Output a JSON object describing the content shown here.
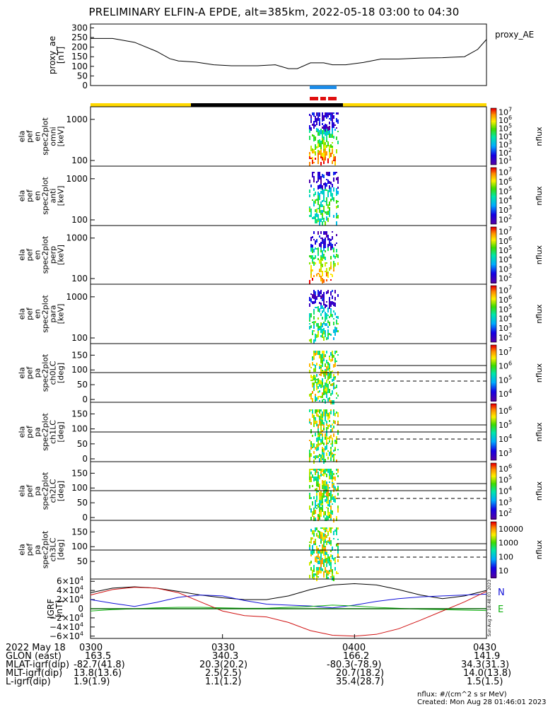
{
  "title": "PRELIMINARY ELFIN-A EPDE, alt=385km, 2022-05-18 03:00 to 04:30",
  "colors": {
    "fgm_sci_bar": "#1c8ce8",
    "epd_sci_bar": "#e01010",
    "day_color": "#ffd800",
    "night_color": "#000000",
    "trace_black": "#000000",
    "trace_blue": "#1010d8",
    "trace_green": "#10b010",
    "trace_red": "#d01010",
    "trace_dark_green": "#006400"
  },
  "chart_data": [
    {
      "type": "line",
      "name": "proxy_ae",
      "ylabel": "proxy_ae\n[nT]",
      "legend": "proxy_AE",
      "yticks": [
        "0",
        "50",
        "100",
        "150",
        "200",
        "250",
        "300"
      ],
      "ylim": [
        0,
        320
      ],
      "x_minutes": [
        0,
        5,
        10,
        15,
        18,
        20,
        24,
        28,
        32,
        38,
        42,
        45,
        47,
        50,
        53,
        55,
        58,
        62,
        66,
        70,
        75,
        80,
        85,
        88,
        90
      ],
      "values": [
        245,
        245,
        225,
        178,
        140,
        128,
        122,
        108,
        103,
        103,
        108,
        88,
        88,
        118,
        118,
        108,
        108,
        120,
        138,
        138,
        143,
        145,
        150,
        188,
        240
      ]
    },
    {
      "type": "heatmap",
      "ylabel": "ela\npef\nen\nspec2plot\nomni\n[keV]",
      "yticks": [
        "100",
        "1000"
      ],
      "colorbar": {
        "ticks": [
          "10",
          "10",
          "10",
          "10",
          "10",
          "10",
          "10"
        ],
        "exponents": [
          "1",
          "2",
          "3",
          "4",
          "5",
          "6",
          "7"
        ],
        "label": "nflux"
      }
    },
    {
      "type": "heatmap",
      "ylabel": "ela\npef\nen\nspec2plot\nanti\n[keV]",
      "yticks": [
        "100",
        "1000"
      ],
      "colorbar": {
        "ticks": [
          "10",
          "10",
          "10",
          "10",
          "10",
          "10"
        ],
        "exponents": [
          "2",
          "3",
          "4",
          "5",
          "6",
          "7"
        ],
        "label": "nflux"
      }
    },
    {
      "type": "heatmap",
      "ylabel": "ela\npef\nen\nspec2plot\nperp\n[keV]",
      "yticks": [
        "100",
        "1000"
      ],
      "colorbar": {
        "ticks": [
          "10",
          "10",
          "10",
          "10",
          "10",
          "10"
        ],
        "exponents": [
          "2",
          "3",
          "4",
          "5",
          "6",
          "7"
        ],
        "label": "nflux"
      }
    },
    {
      "type": "heatmap",
      "ylabel": "ela\npef\nen\nspec2plot\npara\n[keV]",
      "yticks": [
        "100",
        "1000"
      ],
      "colorbar": {
        "ticks": [
          "10",
          "10",
          "10",
          "10",
          "10",
          "10"
        ],
        "exponents": [
          "2",
          "3",
          "4",
          "5",
          "6",
          "7"
        ],
        "label": "nflux"
      }
    },
    {
      "type": "heatmap",
      "ylabel": "ela\npef\npa\nspec2plot\nch0LC\n[deg]",
      "yticks": [
        "0",
        "50",
        "100",
        "150"
      ],
      "colorbar": {
        "ticks": [
          "10",
          "10",
          "10",
          "10"
        ],
        "exponents": [
          "4",
          "5",
          "6",
          "7"
        ],
        "label": "nflux"
      }
    },
    {
      "type": "heatmap",
      "ylabel": "ela\npef\npa\nspec2plot\nch1LC\n[deg]",
      "yticks": [
        "0",
        "50",
        "100",
        "150"
      ],
      "colorbar": {
        "ticks": [
          "10",
          "10",
          "10",
          "10"
        ],
        "exponents": [
          "3",
          "4",
          "5",
          "6"
        ],
        "label": "nflux"
      }
    },
    {
      "type": "heatmap",
      "ylabel": "ela\npef\npa\nspec2plot\nch2LC\n[deg]",
      "yticks": [
        "0",
        "50",
        "100",
        "150"
      ],
      "colorbar": {
        "ticks": [
          "10",
          "10",
          "10",
          "10",
          "10"
        ],
        "exponents": [
          "2",
          "3",
          "4",
          "5",
          "6"
        ],
        "label": "nflux"
      }
    },
    {
      "type": "heatmap",
      "ylabel": "ela\npef\npa\nspec2plot\nch3LC\n[deg]",
      "yticks": [
        "50",
        "100",
        "150"
      ],
      "colorbar": {
        "ticks": [
          "10",
          "100",
          "1000",
          "10000"
        ],
        "exponents": [
          "",
          "",
          "",
          ""
        ],
        "label": "nflux"
      }
    },
    {
      "type": "line",
      "name": "IGRF",
      "ylabel": "IGRF\n[nT]",
      "yticks": [
        "−6×10",
        "−4×10",
        "−2×10",
        "0",
        "2×10",
        "4×10",
        "6×10"
      ],
      "ytick_exp": "4",
      "ylim": [
        -65000,
        65000
      ],
      "legend": [
        "N",
        "E"
      ],
      "x_minutes": [
        0,
        5,
        10,
        15,
        20,
        25,
        30,
        35,
        40,
        45,
        50,
        55,
        60,
        65,
        70,
        75,
        80,
        85,
        90
      ],
      "series": [
        {
          "name": "black",
          "values": [
            35000,
            45000,
            48000,
            45000,
            38000,
            30000,
            24000,
            20000,
            20000,
            28000,
            42000,
            52000,
            55000,
            52000,
            42000,
            30000,
            22000,
            28000,
            40000
          ]
        },
        {
          "name": "blue",
          "values": [
            20000,
            12000,
            5000,
            14000,
            25000,
            30000,
            28000,
            18000,
            10000,
            8000,
            6000,
            2000,
            8000,
            16000,
            22000,
            26000,
            28000,
            30000,
            32000
          ]
        },
        {
          "name": "green",
          "values": [
            -5000,
            -2000,
            0,
            2000,
            3000,
            3000,
            2000,
            1000,
            1000,
            3000,
            5000,
            8000,
            6000,
            3000,
            1000,
            -1000,
            -2000,
            -3000,
            -4000
          ]
        },
        {
          "name": "red",
          "values": [
            30000,
            42000,
            47000,
            45000,
            35000,
            15000,
            -5000,
            -15000,
            -18000,
            -30000,
            -48000,
            -58000,
            -60000,
            -56000,
            -44000,
            -25000,
            -5000,
            15000,
            38000
          ]
        },
        {
          "name": "dark-green",
          "values": [
            0,
            0,
            0,
            0,
            0,
            0,
            0,
            0,
            0,
            0,
            0,
            0,
            0,
            0,
            0,
            0,
            0,
            0,
            0
          ]
        }
      ]
    }
  ],
  "xaxis": {
    "rows": [
      {
        "label": "2022 May 18",
        "values": [
          "0300",
          "0330",
          "0400",
          "0430"
        ]
      },
      {
        "label": "GLON (east)",
        "values": [
          "163.5",
          "340.3",
          "166.2",
          "141.9"
        ]
      },
      {
        "label": "MLAT-igrf(dip)",
        "values": [
          "-82.7(41.8)",
          "20.3(20.2)",
          "-80.3(-78.9)",
          "34.3(31.3)"
        ]
      },
      {
        "label": "MLT-igrf(dip)",
        "values": [
          "13.8(13.6)",
          "2.5(2.5)",
          "20.7(18.2)",
          "14.0(13.8)"
        ]
      },
      {
        "label": "L-igrf(dip)",
        "values": [
          "1.9(1.9)",
          "1.1(1.2)",
          "35.4(28.7)",
          "1.5(1.5)"
        ]
      }
    ]
  },
  "footer": {
    "units": "nflux: #/(cm^2 s sr MeV)",
    "created": "Created: Mon Aug 28 01:46:01 2023",
    "stamp": "Sun Aug 27 18:48:01 2023"
  }
}
